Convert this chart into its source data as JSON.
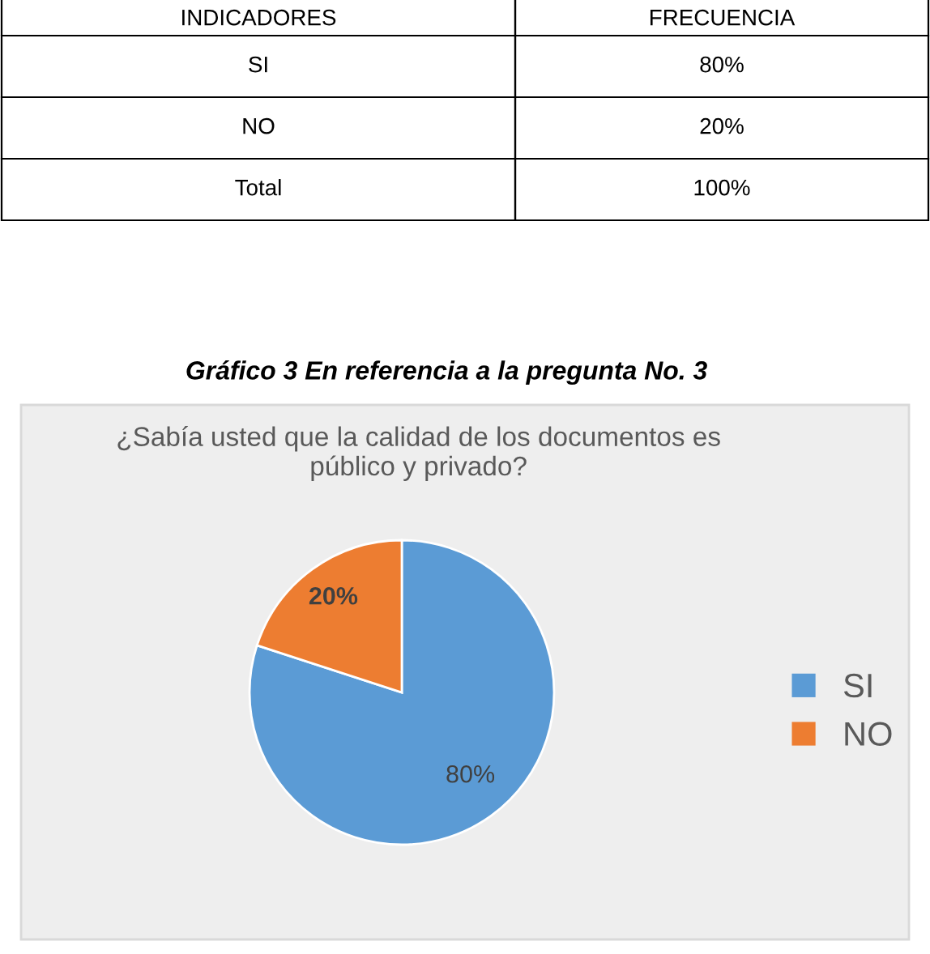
{
  "chart_data": {
    "type": "pie",
    "title": "¿Sabía usted que la calidad de los documentos es\npúblico y privado?",
    "categories": [
      "SI",
      "NO"
    ],
    "values": [
      80,
      20
    ],
    "colors": [
      "#5b9bd5",
      "#ed7d31"
    ],
    "value_labels": [
      "80%",
      "20%"
    ],
    "legend": "right",
    "annotations": [
      "INDICADORES",
      "FRECUENCIA",
      "SI",
      "80%",
      "NO",
      "20%",
      "Total",
      "100%",
      "Gráfico 3 En referencia a la pregunta No. 3"
    ]
  }
}
